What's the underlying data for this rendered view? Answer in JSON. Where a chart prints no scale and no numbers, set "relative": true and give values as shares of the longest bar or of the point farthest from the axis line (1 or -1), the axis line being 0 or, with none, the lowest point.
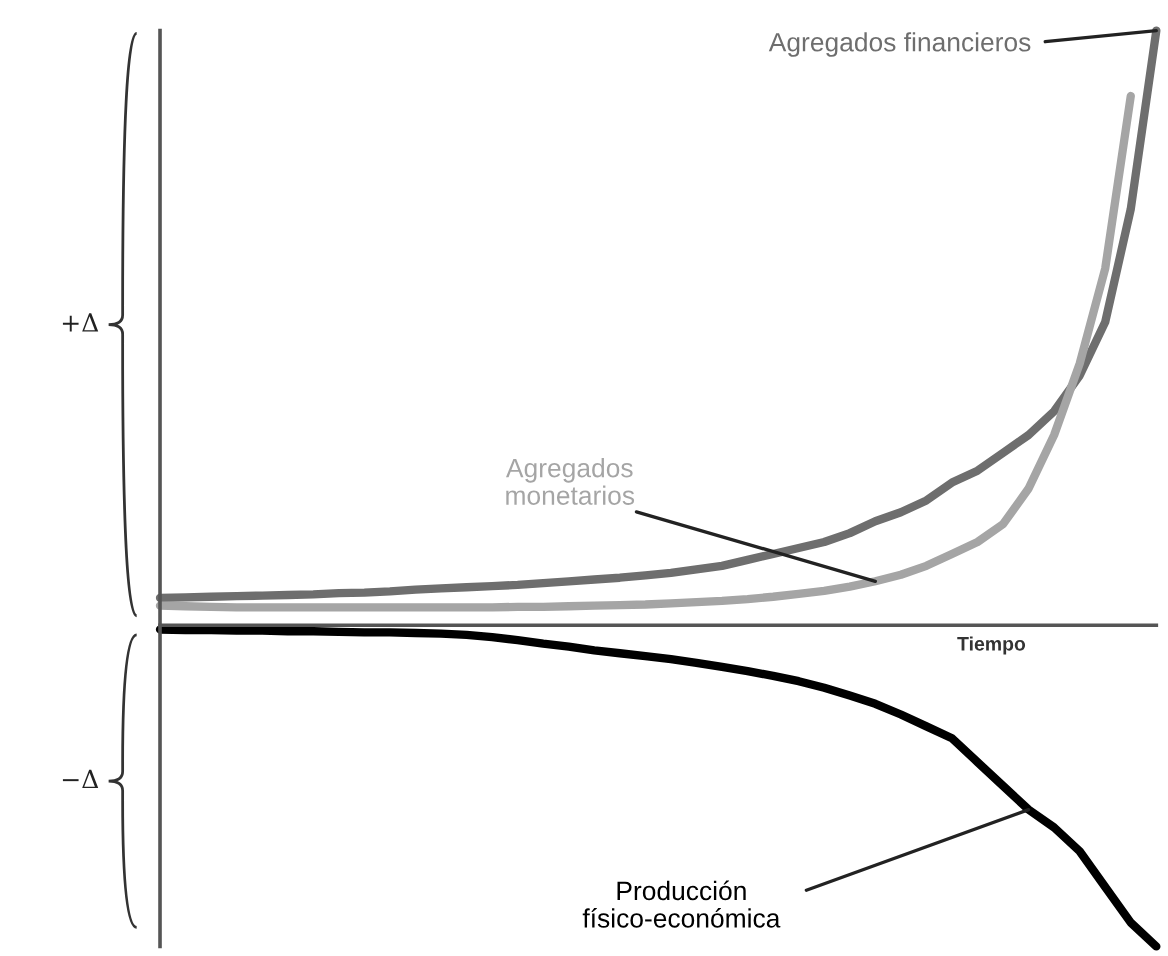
{
  "chart_data": {
    "type": "line",
    "relative": true,
    "xlabel": "Tiempo",
    "marker": "none",
    "line_style": "solid",
    "annotations": [
      "+Δ",
      "−Δ"
    ],
    "categories": [
      null,
      null,
      null,
      null,
      null,
      null,
      null,
      null,
      null,
      null,
      null,
      null,
      null,
      null,
      null,
      null,
      null,
      null,
      null,
      null,
      null,
      null,
      null,
      null,
      null,
      null,
      null,
      null,
      null,
      null,
      null,
      null,
      null,
      null,
      null,
      null,
      null,
      null,
      null,
      null
    ],
    "series": [
      {
        "name": "Agregados financieros",
        "color": "#6e6e6e",
        "values": [
          0.046,
          0.047,
          0.048,
          0.049,
          0.05,
          0.051,
          0.052,
          0.054,
          0.055,
          0.057,
          0.06,
          0.062,
          0.064,
          0.066,
          0.068,
          0.071,
          0.074,
          0.077,
          0.08,
          0.084,
          0.088,
          0.094,
          0.1,
          0.11,
          0.12,
          0.13,
          0.14,
          0.155,
          0.175,
          0.19,
          0.21,
          0.24,
          0.26,
          0.29,
          0.32,
          0.36,
          0.42,
          0.51,
          0.7,
          1.0
        ]
      },
      {
        "name": "Agregados monetarios",
        "color": "#a5a5a5",
        "values": [
          0.033,
          0.032,
          0.031,
          0.03,
          0.03,
          0.03,
          0.03,
          0.03,
          0.03,
          0.03,
          0.03,
          0.03,
          0.03,
          0.03,
          0.031,
          0.031,
          0.032,
          0.033,
          0.034,
          0.035,
          0.037,
          0.039,
          0.041,
          0.044,
          0.048,
          0.053,
          0.058,
          0.065,
          0.074,
          0.085,
          0.1,
          0.12,
          0.14,
          0.17,
          0.23,
          0.32,
          0.44,
          0.6,
          0.89,
          null
        ]
      },
      {
        "name": "Producción físico-económica",
        "color": "#000000",
        "values": [
          -0.007,
          -0.008,
          -0.008,
          -0.009,
          -0.009,
          -0.01,
          -0.01,
          -0.011,
          -0.012,
          -0.012,
          -0.013,
          -0.014,
          -0.016,
          -0.02,
          -0.025,
          -0.031,
          -0.036,
          -0.042,
          -0.047,
          -0.052,
          -0.057,
          -0.063,
          -0.07,
          -0.077,
          -0.085,
          -0.094,
          -0.105,
          -0.118,
          -0.132,
          -0.15,
          -0.17,
          -0.19,
          -0.23,
          -0.27,
          -0.31,
          -0.34,
          -0.38,
          -0.44,
          -0.5,
          -0.54
        ]
      }
    ]
  }
}
